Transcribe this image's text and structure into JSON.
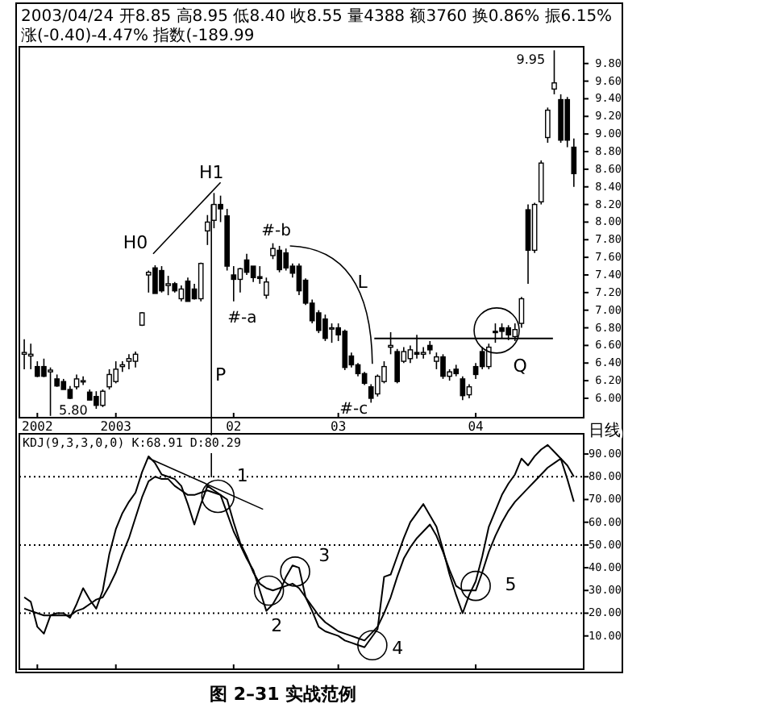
{
  "chart_data": [
    {
      "type": "candlestick",
      "title": "图 2–31 实战范例",
      "categories": [
        null,
        null,
        "2002",
        null,
        null,
        null,
        null,
        null,
        null,
        null,
        null,
        null,
        null,
        null,
        "2003",
        null,
        null,
        null,
        null,
        null,
        null,
        null,
        null,
        null,
        null,
        null,
        null,
        null,
        null,
        null,
        null,
        null,
        "02",
        null,
        null,
        null,
        null,
        null,
        null,
        null,
        null,
        null,
        null,
        null,
        null,
        null,
        null,
        null,
        "03",
        null,
        null,
        null,
        null,
        null,
        null,
        null,
        null,
        null,
        null,
        null,
        null,
        null,
        null,
        null,
        null,
        null,
        null,
        null,
        null,
        "04",
        null,
        null,
        null,
        null,
        null,
        null,
        null,
        null,
        null,
        null,
        null,
        null,
        null,
        null,
        null
      ],
      "ohlc": [
        [
          6.5,
          6.67,
          6.33,
          6.52
        ],
        [
          6.48,
          6.62,
          6.33,
          6.5
        ],
        [
          6.36,
          6.42,
          6.24,
          6.25
        ],
        [
          6.36,
          6.45,
          6.24,
          6.25
        ],
        [
          6.3,
          6.35,
          5.8,
          6.32
        ],
        [
          6.22,
          6.27,
          6.13,
          6.14
        ],
        [
          6.19,
          6.22,
          6.1,
          6.1
        ],
        [
          6.1,
          6.14,
          5.99,
          6.0
        ],
        [
          6.13,
          6.27,
          6.1,
          6.22
        ],
        [
          6.2,
          6.25,
          6.15,
          6.2
        ],
        [
          6.07,
          6.1,
          5.98,
          5.98
        ],
        [
          6.02,
          6.08,
          5.88,
          5.92
        ],
        [
          5.92,
          6.1,
          5.9,
          6.08
        ],
        [
          6.13,
          6.33,
          6.1,
          6.27
        ],
        [
          6.19,
          6.42,
          6.17,
          6.33
        ],
        [
          6.36,
          6.42,
          6.3,
          6.38
        ],
        [
          6.42,
          6.5,
          6.33,
          6.45
        ],
        [
          6.42,
          6.53,
          6.35,
          6.5
        ],
        [
          6.83,
          6.98,
          6.82,
          6.97
        ],
        [
          7.4,
          7.45,
          7.2,
          7.43
        ],
        [
          7.48,
          7.51,
          7.19,
          7.19
        ],
        [
          7.45,
          7.5,
          7.2,
          7.22
        ],
        [
          7.28,
          7.39,
          7.17,
          7.3
        ],
        [
          7.3,
          7.32,
          7.2,
          7.22
        ],
        [
          7.13,
          7.28,
          7.1,
          7.24
        ],
        [
          7.33,
          7.37,
          7.1,
          7.1
        ],
        [
          7.24,
          7.3,
          7.12,
          7.13
        ],
        [
          7.13,
          7.54,
          7.1,
          7.53
        ],
        [
          7.9,
          8.08,
          7.74,
          8.0
        ],
        [
          8.02,
          8.33,
          7.93,
          8.2
        ],
        [
          8.2,
          8.3,
          8.0,
          8.15
        ],
        [
          8.07,
          8.15,
          7.45,
          7.5
        ],
        [
          7.4,
          7.5,
          7.1,
          7.35
        ],
        [
          7.35,
          7.48,
          7.2,
          7.47
        ],
        [
          7.57,
          7.64,
          7.4,
          7.43
        ],
        [
          7.5,
          7.5,
          7.32,
          7.37
        ],
        [
          7.38,
          7.5,
          7.3,
          7.36
        ],
        [
          7.17,
          7.37,
          7.13,
          7.32
        ],
        [
          7.62,
          7.76,
          7.58,
          7.7
        ],
        [
          7.68,
          7.73,
          7.43,
          7.46
        ],
        [
          7.65,
          7.7,
          7.45,
          7.48
        ],
        [
          7.5,
          7.53,
          7.37,
          7.42
        ],
        [
          7.5,
          7.53,
          7.17,
          7.22
        ],
        [
          7.34,
          7.36,
          7.06,
          7.08
        ],
        [
          7.08,
          7.12,
          6.85,
          6.88
        ],
        [
          6.97,
          7.0,
          6.74,
          6.77
        ],
        [
          6.9,
          6.95,
          6.65,
          6.68
        ],
        [
          6.79,
          6.85,
          6.63,
          6.8
        ],
        [
          6.8,
          6.85,
          6.65,
          6.72
        ],
        [
          6.76,
          6.78,
          6.32,
          6.35
        ],
        [
          6.48,
          6.52,
          6.35,
          6.38
        ],
        [
          6.38,
          6.4,
          6.25,
          6.28
        ],
        [
          6.28,
          6.3,
          6.15,
          6.17
        ],
        [
          6.13,
          6.16,
          5.95,
          6.0
        ],
        [
          6.05,
          6.27,
          6.02,
          6.25
        ],
        [
          6.19,
          6.42,
          6.17,
          6.36
        ],
        [
          6.58,
          6.75,
          6.5,
          6.6
        ],
        [
          6.53,
          6.56,
          6.17,
          6.19
        ],
        [
          6.42,
          6.58,
          6.4,
          6.53
        ],
        [
          6.45,
          6.6,
          6.4,
          6.55
        ],
        [
          6.52,
          6.72,
          6.45,
          6.5
        ],
        [
          6.5,
          6.58,
          6.45,
          6.52
        ],
        [
          6.6,
          6.65,
          6.5,
          6.55
        ],
        [
          6.42,
          6.52,
          6.33,
          6.47
        ],
        [
          6.47,
          6.5,
          6.22,
          6.25
        ],
        [
          6.25,
          6.33,
          6.2,
          6.3
        ],
        [
          6.33,
          6.38,
          6.25,
          6.28
        ],
        [
          6.22,
          6.25,
          5.98,
          6.03
        ],
        [
          6.04,
          6.16,
          6.0,
          6.13
        ],
        [
          6.36,
          6.4,
          6.22,
          6.27
        ],
        [
          6.53,
          6.58,
          6.33,
          6.36
        ],
        [
          6.36,
          6.62,
          6.33,
          6.58
        ],
        [
          6.76,
          6.85,
          6.63,
          6.75
        ],
        [
          6.8,
          6.85,
          6.68,
          6.76
        ],
        [
          6.8,
          6.83,
          6.66,
          6.72
        ],
        [
          6.7,
          6.85,
          6.65,
          6.78
        ],
        [
          6.85,
          7.15,
          6.8,
          7.13
        ],
        [
          8.14,
          8.2,
          7.3,
          7.68
        ],
        [
          7.68,
          8.22,
          7.65,
          8.2
        ],
        [
          8.23,
          8.7,
          8.2,
          8.67
        ],
        [
          8.96,
          9.3,
          8.9,
          9.27
        ],
        [
          9.51,
          9.95,
          9.45,
          9.58
        ],
        [
          9.39,
          9.45,
          8.9,
          8.93
        ],
        [
          9.39,
          9.42,
          8.85,
          8.93
        ],
        [
          8.85,
          8.95,
          8.4,
          8.55
        ]
      ],
      "ylim": [
        5.78,
        9.99
      ],
      "yticks": [
        {
          "value": 6.0,
          "label": "6.00"
        },
        {
          "value": 6.2,
          "label": "6.20"
        },
        {
          "value": 6.4,
          "label": "6.40"
        },
        {
          "value": 6.6,
          "label": "6.60"
        },
        {
          "value": 6.8,
          "label": "6.80"
        },
        {
          "value": 7.0,
          "label": "7.00"
        },
        {
          "value": 7.2,
          "label": "7.20"
        },
        {
          "value": 7.4,
          "label": "7.40"
        },
        {
          "value": 7.6,
          "label": "7.60"
        },
        {
          "value": 7.8,
          "label": "7.80"
        },
        {
          "value": 8.0,
          "label": "8.00"
        },
        {
          "value": 8.2,
          "label": "8.20"
        },
        {
          "value": 8.4,
          "label": "8.40"
        },
        {
          "value": 8.6,
          "label": "8.60"
        },
        {
          "value": 8.8,
          "label": "8.80"
        },
        {
          "value": 9.0,
          "label": "9.00"
        },
        {
          "value": 9.2,
          "label": "9.20"
        },
        {
          "value": 9.4,
          "label": "9.40"
        },
        {
          "value": 9.6,
          "label": "9.60"
        },
        {
          "value": 9.8,
          "label": "9.80"
        }
      ],
      "ref_lines": [
        {
          "axis": "y",
          "value": 6.68
        }
      ],
      "annotations": [
        "2003/04/24 开8.85 高8.95 低8.40 收8.55 量4388 额3760 换0.86% 振6.15% 涨(-0.40)-4.47% 指数(-189.99",
        "H0",
        "H1",
        "P",
        "#-a",
        "#-b",
        "L",
        "#-c",
        "Q",
        "9.95",
        "5.80",
        "日线"
      ]
    },
    {
      "type": "line",
      "tick_labels": "y",
      "categories": [
        null,
        null,
        "2002",
        null,
        null,
        null,
        null,
        null,
        null,
        null,
        null,
        null,
        null,
        null,
        "2003",
        null,
        null,
        null,
        null,
        null,
        null,
        null,
        null,
        null,
        null,
        null,
        null,
        null,
        null,
        null,
        null,
        null,
        "02",
        null,
        null,
        null,
        null,
        null,
        null,
        null,
        null,
        null,
        null,
        null,
        null,
        null,
        null,
        null,
        "03",
        null,
        null,
        null,
        null,
        null,
        null,
        null,
        null,
        null,
        null,
        null,
        null,
        null,
        null,
        null,
        null,
        null,
        null,
        null,
        null,
        "04",
        null,
        null,
        null,
        null,
        null,
        null,
        null,
        null,
        null,
        null,
        null,
        null,
        null,
        null,
        null
      ],
      "series": [
        {
          "color": "#000000",
          "values": [
            27,
            25,
            14,
            11,
            19,
            20,
            20,
            18,
            24,
            31,
            26,
            22,
            30,
            46,
            57,
            64,
            69,
            73,
            82,
            89,
            86,
            81,
            80,
            79,
            76,
            68,
            59,
            68,
            76,
            74,
            72,
            64,
            56,
            50,
            44,
            39,
            30,
            21,
            24,
            29,
            36,
            41,
            40,
            27,
            21,
            14,
            12,
            11,
            10,
            8,
            7,
            6,
            5,
            9,
            13,
            36,
            37,
            45,
            53,
            60,
            64,
            68,
            63,
            58,
            48,
            37,
            28,
            20,
            28,
            34,
            45,
            58,
            65,
            72,
            77,
            81,
            88,
            85,
            89,
            92,
            94,
            91,
            88,
            79,
            69
          ]
        },
        {
          "color": "#000000",
          "values": [
            22,
            21,
            20,
            19,
            19,
            19,
            19,
            19,
            21,
            22,
            24,
            26,
            27,
            32,
            38,
            46,
            53,
            62,
            71,
            78,
            80,
            79,
            79,
            76,
            74,
            72,
            72,
            73,
            74,
            73,
            72,
            70,
            60,
            51,
            45,
            38,
            33,
            31,
            30,
            31,
            32,
            33,
            31,
            27,
            23,
            19,
            16,
            14,
            12,
            11,
            10,
            9,
            8,
            11,
            14,
            20,
            27,
            36,
            44,
            49,
            53,
            56,
            59,
            54,
            47,
            39,
            32,
            30,
            30,
            30,
            38,
            47,
            54,
            60,
            65,
            69,
            72,
            75,
            78,
            81,
            84,
            86,
            88,
            85,
            80
          ]
        }
      ],
      "ylim": [
        -4.65,
        98.9
      ],
      "yticks": [
        {
          "value": 10,
          "label": "10.00"
        },
        {
          "value": 20,
          "label": "20.00"
        },
        {
          "value": 30,
          "label": "30.00"
        },
        {
          "value": 40,
          "label": "40.00"
        },
        {
          "value": 50,
          "label": "50.00"
        },
        {
          "value": 60,
          "label": "60.00"
        },
        {
          "value": 70,
          "label": "70.00"
        },
        {
          "value": 80,
          "label": "80.00"
        },
        {
          "value": 90,
          "label": "90.00"
        }
      ],
      "ref_lines": [
        {
          "axis": "y",
          "value": 20,
          "line_style": "dotted"
        },
        {
          "axis": "y",
          "value": 50,
          "line_style": "dotted"
        },
        {
          "axis": "y",
          "value": 80,
          "line_style": "dotted"
        }
      ],
      "annotations": [
        "KDJ(9,3,3,0,0) K:68.91 D:80.29",
        "1",
        "2",
        "3",
        "4",
        "5"
      ]
    }
  ]
}
